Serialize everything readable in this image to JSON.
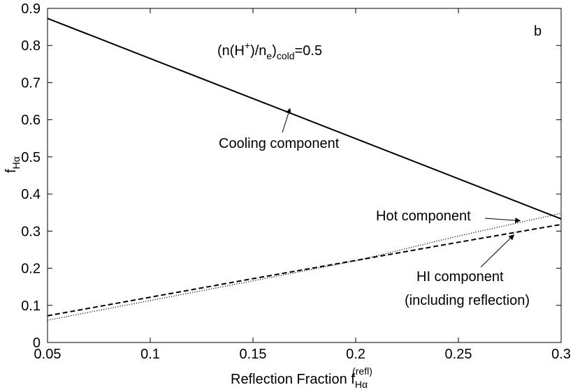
{
  "chart_data": {
    "type": "line",
    "xlim": [
      0.05,
      0.3
    ],
    "ylim": [
      0,
      0.9
    ],
    "x_ticks": [
      0.05,
      0.1,
      0.15,
      0.2,
      0.25,
      0.3
    ],
    "y_ticks": [
      0,
      0.1,
      0.2,
      0.3,
      0.4,
      0.5,
      0.6,
      0.7,
      0.8,
      0.9
    ],
    "x_tick_labels": [
      "0.05",
      "0.1",
      "0.15",
      "0.2",
      "0.25",
      "0.3"
    ],
    "y_tick_labels": [
      "0",
      "0.1",
      "0.2",
      "0.3",
      "0.4",
      "0.5",
      "0.6",
      "0.7",
      "0.8",
      "0.9"
    ],
    "xlabel": {
      "main": "Reflection Fraction f",
      "sub": "Hα",
      "sup": "(refl)"
    },
    "ylabel": {
      "main": "f",
      "sub": "Hα"
    },
    "grid": false,
    "panel_label": "b",
    "condition_label": {
      "prefix": "(n(H",
      "sup": "+",
      "mid": ")/n",
      "sub1": "e",
      "close": ")",
      "sub2": "cold",
      "suffix": "=0.5"
    },
    "series": [
      {
        "line_style": "solid",
        "color": "#000000",
        "x": [
          0.05,
          0.1,
          0.15,
          0.2,
          0.25,
          0.3
        ],
        "y": [
          0.873,
          0.765,
          0.657,
          0.549,
          0.441,
          0.333
        ]
      },
      {
        "line_style": "dotted",
        "color": "#000000",
        "x": [
          0.05,
          0.1,
          0.15,
          0.2,
          0.25,
          0.3
        ],
        "y": [
          0.06,
          0.113,
          0.166,
          0.22,
          0.287,
          0.348
        ]
      },
      {
        "line_style": "dashed",
        "color": "#000000",
        "x": [
          0.05,
          0.1,
          0.15,
          0.2,
          0.25,
          0.3
        ],
        "y": [
          0.072,
          0.122,
          0.172,
          0.221,
          0.27,
          0.318
        ]
      }
    ],
    "annotations": [
      {
        "lines": [
          "Cooling component"
        ],
        "arrow_to": [
          0.168,
          0.63
        ]
      },
      {
        "lines": [
          "Hot component"
        ],
        "arrow_to": [
          0.28,
          0.328
        ]
      },
      {
        "lines": [
          "HI component",
          "(including reflection)"
        ],
        "arrow_to": [
          0.277,
          0.29
        ]
      }
    ]
  }
}
